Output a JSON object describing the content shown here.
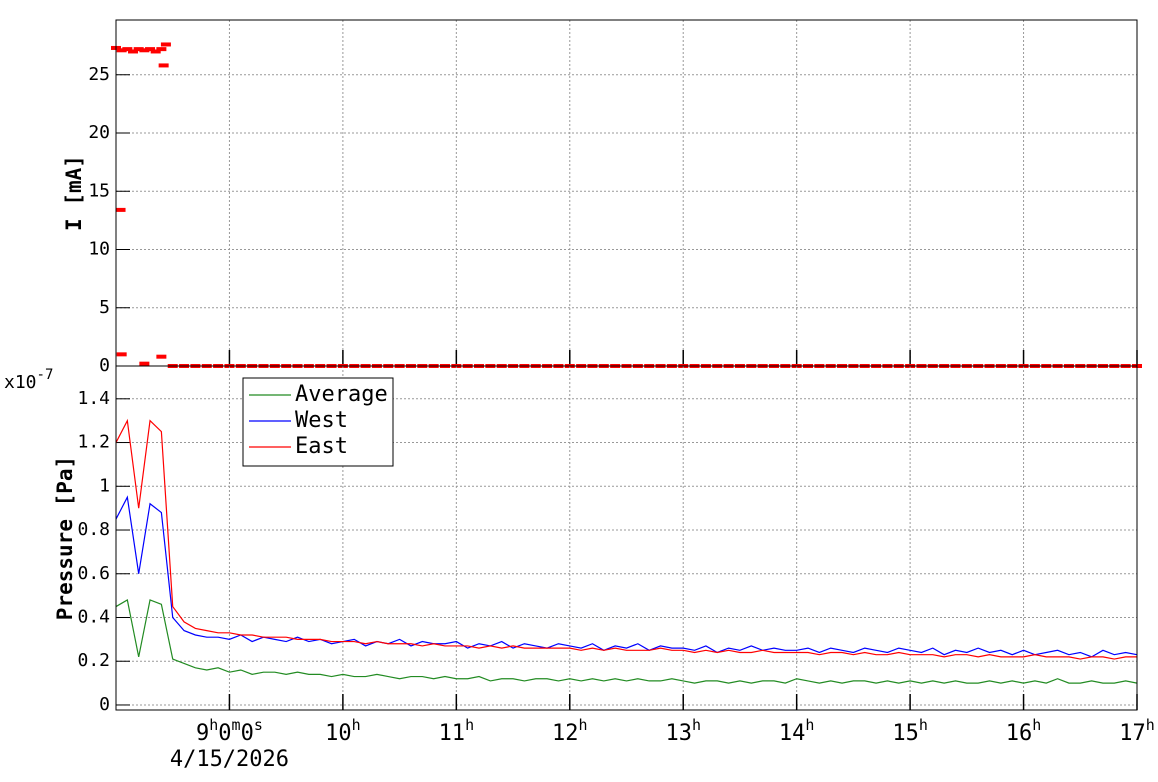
{
  "chart_data": [
    {
      "type": "scatter",
      "y_label": "I [mA]",
      "color": "#ff0000",
      "grid": true,
      "xlim": [
        8,
        17
      ],
      "xticks": [
        9,
        10,
        11,
        12,
        13,
        14,
        15,
        16,
        17
      ],
      "ylim": [
        0,
        29.7
      ],
      "yticks": [
        0,
        5,
        10,
        15,
        20,
        25
      ],
      "x": [
        8.0,
        8.05,
        8.1,
        8.15,
        8.2,
        8.25,
        8.3,
        8.35,
        8.4,
        8.04,
        8.05,
        8.25,
        8.4,
        8.42,
        8.44,
        8.5,
        8.6,
        8.7,
        8.8,
        8.9,
        9.0,
        9.1,
        9.2,
        9.3,
        9.4,
        9.5,
        9.6,
        9.7,
        9.8,
        9.9,
        10.0,
        10.1,
        10.2,
        10.3,
        10.4,
        10.5,
        10.6,
        10.7,
        10.8,
        10.9,
        11.0,
        11.1,
        11.2,
        11.3,
        11.4,
        11.5,
        11.6,
        11.7,
        11.8,
        11.9,
        12.0,
        12.1,
        12.2,
        12.3,
        12.4,
        12.5,
        12.6,
        12.7,
        12.8,
        12.9,
        13.0,
        13.1,
        13.2,
        13.3,
        13.4,
        13.5,
        13.6,
        13.7,
        13.8,
        13.9,
        14.0,
        14.1,
        14.2,
        14.3,
        14.4,
        14.5,
        14.6,
        14.7,
        14.8,
        14.9,
        15.0,
        15.1,
        15.2,
        15.3,
        15.4,
        15.5,
        15.6,
        15.7,
        15.8,
        15.9,
        16.0,
        16.1,
        16.2,
        16.3,
        16.4,
        16.5,
        16.6,
        16.7,
        16.8,
        16.9,
        17.0
      ],
      "values": [
        27.3,
        27.1,
        27.2,
        27.0,
        27.2,
        27.1,
        27.2,
        27.0,
        27.2,
        13.4,
        1.0,
        0.2,
        0.8,
        25.8,
        27.6,
        0,
        0,
        0,
        0,
        0,
        0,
        0,
        0,
        0,
        0,
        0,
        0,
        0,
        0,
        0,
        0,
        0,
        0,
        0,
        0,
        0,
        0,
        0,
        0,
        0,
        0,
        0,
        0,
        0,
        0,
        0,
        0,
        0,
        0,
        0,
        0,
        0,
        0,
        0,
        0,
        0,
        0,
        0,
        0,
        0,
        0,
        0,
        0,
        0,
        0,
        0,
        0,
        0,
        0,
        0,
        0,
        0,
        0,
        0,
        0,
        0,
        0,
        0,
        0,
        0,
        0,
        0,
        0,
        0,
        0,
        0,
        0,
        0,
        0,
        0,
        0,
        0,
        0,
        0,
        0,
        0,
        0,
        0,
        0,
        0,
        0
      ]
    },
    {
      "type": "line",
      "y_label": "Pressure [Pa]",
      "y_multiplier": {
        "base": "x10",
        "exponent": "-7"
      },
      "grid": true,
      "legend": "upper-left",
      "xlim": [
        8,
        17
      ],
      "xticks": [
        {
          "value": 9,
          "label": "9h0m0s"
        },
        {
          "value": 10,
          "label": "10h"
        },
        {
          "value": 11,
          "label": "11h"
        },
        {
          "value": 12,
          "label": "12h"
        },
        {
          "value": 13,
          "label": "13h"
        },
        {
          "value": 14,
          "label": "14h"
        },
        {
          "value": 15,
          "label": "15h"
        },
        {
          "value": 16,
          "label": "16h"
        },
        {
          "value": 17,
          "label": "17h"
        }
      ],
      "x_date": "4/15/2026",
      "ylim": [
        -0.023,
        1.55
      ],
      "yticks": [
        0,
        0.2,
        0.4,
        0.6,
        0.8,
        1,
        1.2,
        1.4
      ],
      "x": [
        8.0,
        8.1,
        8.2,
        8.3,
        8.4,
        8.5,
        8.6,
        8.7,
        8.8,
        8.9,
        9.0,
        9.1,
        9.2,
        9.3,
        9.4,
        9.5,
        9.6,
        9.7,
        9.8,
        9.9,
        10.0,
        10.1,
        10.2,
        10.3,
        10.4,
        10.5,
        10.6,
        10.7,
        10.8,
        10.9,
        11.0,
        11.1,
        11.2,
        11.3,
        11.4,
        11.5,
        11.6,
        11.7,
        11.8,
        11.9,
        12.0,
        12.1,
        12.2,
        12.3,
        12.4,
        12.5,
        12.6,
        12.7,
        12.8,
        12.9,
        13.0,
        13.1,
        13.2,
        13.3,
        13.4,
        13.5,
        13.6,
        13.7,
        13.8,
        13.9,
        14.0,
        14.1,
        14.2,
        14.3,
        14.4,
        14.5,
        14.6,
        14.7,
        14.8,
        14.9,
        15.0,
        15.1,
        15.2,
        15.3,
        15.4,
        15.5,
        15.6,
        15.7,
        15.8,
        15.9,
        16.0,
        16.1,
        16.2,
        16.3,
        16.4,
        16.5,
        16.6,
        16.7,
        16.8,
        16.9,
        17.0
      ],
      "series": [
        {
          "name": "Average",
          "color": "#228b22",
          "values": [
            0.45,
            0.48,
            0.22,
            0.48,
            0.46,
            0.21,
            0.19,
            0.17,
            0.16,
            0.17,
            0.15,
            0.16,
            0.14,
            0.15,
            0.15,
            0.14,
            0.15,
            0.14,
            0.14,
            0.13,
            0.14,
            0.13,
            0.13,
            0.14,
            0.13,
            0.12,
            0.13,
            0.13,
            0.12,
            0.13,
            0.12,
            0.12,
            0.13,
            0.11,
            0.12,
            0.12,
            0.11,
            0.12,
            0.12,
            0.11,
            0.12,
            0.11,
            0.12,
            0.11,
            0.12,
            0.11,
            0.12,
            0.11,
            0.11,
            0.12,
            0.11,
            0.1,
            0.11,
            0.11,
            0.1,
            0.11,
            0.1,
            0.11,
            0.11,
            0.1,
            0.12,
            0.11,
            0.1,
            0.11,
            0.1,
            0.11,
            0.11,
            0.1,
            0.11,
            0.1,
            0.11,
            0.1,
            0.11,
            0.1,
            0.11,
            0.1,
            0.1,
            0.11,
            0.1,
            0.11,
            0.1,
            0.11,
            0.1,
            0.12,
            0.1,
            0.1,
            0.11,
            0.1,
            0.1,
            0.11,
            0.1
          ]
        },
        {
          "name": "West",
          "color": "#0000ff",
          "values": [
            0.85,
            0.95,
            0.6,
            0.92,
            0.88,
            0.4,
            0.34,
            0.32,
            0.31,
            0.31,
            0.3,
            0.32,
            0.29,
            0.31,
            0.3,
            0.29,
            0.31,
            0.29,
            0.3,
            0.28,
            0.29,
            0.3,
            0.27,
            0.29,
            0.28,
            0.3,
            0.27,
            0.29,
            0.28,
            0.28,
            0.29,
            0.26,
            0.28,
            0.27,
            0.29,
            0.26,
            0.28,
            0.27,
            0.26,
            0.28,
            0.27,
            0.26,
            0.28,
            0.25,
            0.27,
            0.26,
            0.28,
            0.25,
            0.27,
            0.26,
            0.26,
            0.25,
            0.27,
            0.24,
            0.26,
            0.25,
            0.27,
            0.25,
            0.26,
            0.25,
            0.25,
            0.26,
            0.24,
            0.26,
            0.25,
            0.24,
            0.26,
            0.25,
            0.24,
            0.26,
            0.25,
            0.24,
            0.26,
            0.23,
            0.25,
            0.24,
            0.26,
            0.24,
            0.25,
            0.23,
            0.25,
            0.23,
            0.24,
            0.25,
            0.23,
            0.24,
            0.22,
            0.25,
            0.23,
            0.24,
            0.23
          ]
        },
        {
          "name": "East",
          "color": "#ff0000",
          "values": [
            1.2,
            1.3,
            0.9,
            1.3,
            1.25,
            0.45,
            0.38,
            0.35,
            0.34,
            0.33,
            0.33,
            0.32,
            0.32,
            0.31,
            0.31,
            0.31,
            0.3,
            0.3,
            0.3,
            0.29,
            0.29,
            0.29,
            0.28,
            0.29,
            0.28,
            0.28,
            0.28,
            0.27,
            0.28,
            0.27,
            0.27,
            0.27,
            0.26,
            0.27,
            0.26,
            0.27,
            0.26,
            0.26,
            0.26,
            0.26,
            0.26,
            0.25,
            0.26,
            0.25,
            0.26,
            0.25,
            0.25,
            0.25,
            0.26,
            0.25,
            0.25,
            0.24,
            0.25,
            0.24,
            0.25,
            0.24,
            0.24,
            0.25,
            0.24,
            0.24,
            0.24,
            0.24,
            0.23,
            0.24,
            0.24,
            0.23,
            0.24,
            0.23,
            0.23,
            0.24,
            0.23,
            0.23,
            0.23,
            0.22,
            0.23,
            0.23,
            0.22,
            0.23,
            0.22,
            0.22,
            0.22,
            0.23,
            0.22,
            0.22,
            0.22,
            0.21,
            0.22,
            0.22,
            0.21,
            0.22,
            0.22
          ]
        }
      ]
    }
  ]
}
